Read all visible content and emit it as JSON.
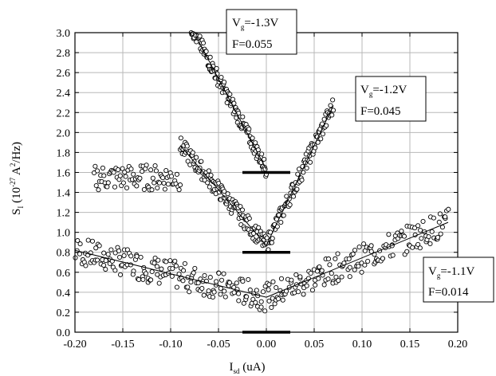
{
  "chart_data": {
    "type": "scatter",
    "title": "",
    "xlabel": {
      "main": "I",
      "sub": "sd",
      "rest": " (uA)"
    },
    "ylabel": {
      "main": "S",
      "sub": "I",
      "a": " (10",
      "exp1": "-27",
      "b": " A",
      "exp2": "2",
      "c": "/Hz)"
    },
    "xlim": [
      -0.2,
      0.2
    ],
    "ylim": [
      0.0,
      3.0
    ],
    "xticks": [
      -0.2,
      -0.15,
      -0.1,
      -0.05,
      0.0,
      0.05,
      0.1,
      0.15,
      0.2
    ],
    "xtick_labels": [
      "-0.20",
      "-0.15",
      "-0.10",
      "-0.05",
      "0.00",
      "0.05",
      "0.10",
      "0.15",
      "0.20"
    ],
    "yticks": [
      0.0,
      0.2,
      0.4,
      0.6,
      0.8,
      1.0,
      1.2,
      1.4,
      1.6,
      1.8,
      2.0,
      2.2,
      2.4,
      2.6,
      2.8,
      3.0
    ],
    "ytick_labels": [
      "0.0",
      "0.2",
      "0.4",
      "0.6",
      "0.8",
      "1.0",
      "1.2",
      "1.4",
      "1.6",
      "1.8",
      "2.0",
      "2.2",
      "2.4",
      "2.6",
      "2.8",
      "3.0"
    ],
    "grid": true,
    "series": [
      {
        "annotation": {
          "vg_prefix": "V",
          "vg_sub": "g",
          "vg_value": "=-1.1V",
          "f": "F=0.014"
        },
        "x_range": [
          -0.2,
          0.19
        ],
        "fit_left": [
          [
            -0.2,
            0.82
          ],
          [
            0.0,
            0.35
          ]
        ],
        "fit_right": [
          [
            0.0,
            0.35
          ],
          [
            0.19,
            1.1
          ]
        ],
        "baseline_y": 0.0
      },
      {
        "annotation": {
          "vg_prefix": "V",
          "vg_sub": "g",
          "vg_value": "=-1.2V",
          "f": "F=0.045"
        },
        "plateau_left": [
          -0.18,
          -0.09,
          1.55
        ],
        "x_range": [
          -0.09,
          0.07
        ],
        "fit_left": [
          [
            -0.09,
            1.87
          ],
          [
            0.0,
            0.87
          ]
        ],
        "fit_right": [
          [
            0.0,
            0.87
          ],
          [
            0.07,
            2.27
          ]
        ],
        "baseline_y": 0.8
      },
      {
        "annotation": {
          "vg_prefix": "V",
          "vg_sub": "g",
          "vg_value": "=-1.3V",
          "f": "F=0.055"
        },
        "x_range": [
          -0.09,
          0.0
        ],
        "fit_left": [
          [
            -0.07,
            2.9
          ],
          [
            0.0,
            1.63
          ]
        ],
        "baseline_y": 1.6
      }
    ]
  }
}
